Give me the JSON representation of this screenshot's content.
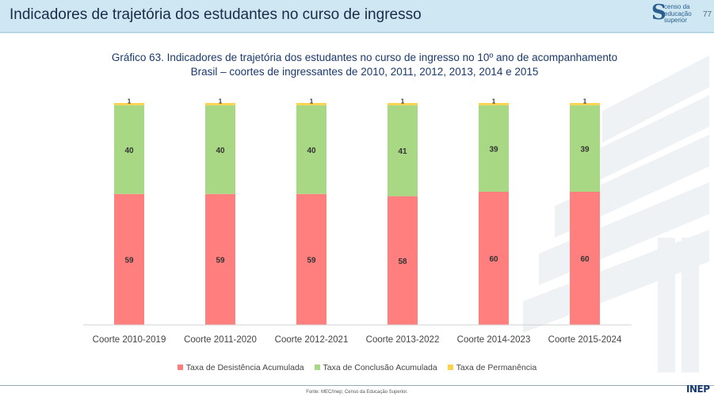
{
  "header": {
    "title": "Indicadores de trajetória dos estudantes no curso de ingresso",
    "logo_letter": "S",
    "logo_text": "censo da educação superior",
    "page_number": "77"
  },
  "colors": {
    "header_bg": "#cfe7f3",
    "desistencia": "#ff7f7f",
    "conclusao": "#a9d884",
    "permanencia": "#ffd24a"
  },
  "chart_data": {
    "type": "bar",
    "stacked": true,
    "title": "Gráfico 63. Indicadores de trajetória dos estudantes no curso de ingresso no 10º ano de acompanhamento",
    "subtitle": "Brasil – coortes de ingressantes de 2010, 2011, 2012, 2013, 2014 e 2015",
    "categories": [
      "Coorte 2010-2019",
      "Coorte 2011-2020",
      "Coorte 2012-2021",
      "Coorte 2013-2022",
      "Coorte 2014-2023",
      "Coorte 2015-2024"
    ],
    "series": [
      {
        "name": "Taxa de Desistência Acumulada",
        "color": "#ff7f7f",
        "values": [
          59,
          59,
          59,
          58,
          60,
          60
        ]
      },
      {
        "name": "Taxa de Conclusão Acumulada",
        "color": "#a9d884",
        "values": [
          40,
          40,
          40,
          41,
          39,
          39
        ]
      },
      {
        "name": "Taxa de Permanência",
        "color": "#ffd24a",
        "values": [
          1,
          1,
          1,
          1,
          1,
          1
        ]
      }
    ],
    "ylim": [
      0,
      100
    ],
    "grid": false,
    "legend_position": "bottom"
  },
  "footer": {
    "source": "Fonte: MEC/Inep; Censo da Educação Superior.",
    "brand": "INEP"
  }
}
